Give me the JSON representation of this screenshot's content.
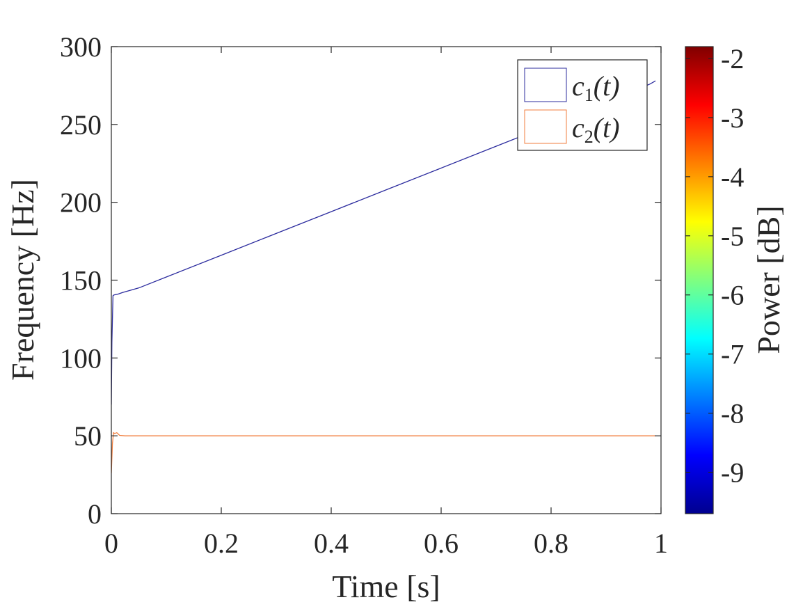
{
  "chart_data": {
    "type": "line",
    "xlabel": "Time [s]",
    "ylabel": "Frequency [Hz]",
    "xlim": [
      0,
      1
    ],
    "ylim": [
      0,
      300
    ],
    "xticks": [
      "0",
      "0.2",
      "0.4",
      "0.6",
      "0.8",
      "1"
    ],
    "xtick_values": [
      0,
      0.2,
      0.4,
      0.6,
      0.8,
      1
    ],
    "yticks": [
      "0",
      "50",
      "100",
      "150",
      "200",
      "250",
      "300"
    ],
    "ytick_values": [
      0,
      50,
      100,
      150,
      200,
      250,
      300
    ],
    "grid": false,
    "legend_position": "top-right",
    "series": [
      {
        "name": "c1(t)",
        "color": "#2b2b9e",
        "x": [
          0,
          0.001,
          0.003,
          0.005,
          0.012,
          0.02,
          0.05,
          0.1,
          0.2,
          0.3,
          0.4,
          0.5,
          0.6,
          0.7,
          0.8,
          0.9,
          0.98,
          0.99
        ],
        "y": [
          70,
          110,
          140,
          140.5,
          141,
          142,
          145,
          152,
          166,
          180,
          194,
          208,
          222,
          236,
          250,
          264,
          276,
          278
        ]
      },
      {
        "name": "c2(t)",
        "color": "#f07d3c",
        "x": [
          0,
          0.002,
          0.004,
          0.006,
          0.01,
          0.015,
          0.025,
          0.1,
          0.3,
          0.5,
          0.7,
          0.9,
          0.99
        ],
        "y": [
          26,
          45,
          52,
          51.5,
          52,
          50.3,
          50,
          50,
          50,
          50,
          50,
          50,
          50
        ]
      }
    ],
    "colorbar": {
      "label": "Power [dB]",
      "colormap": "jet",
      "range": [
        -9.7,
        -1.8
      ],
      "ticks": [
        "-9",
        "-8",
        "-7",
        "-6",
        "-5",
        "-4",
        "-3",
        "-2"
      ],
      "tick_values": [
        -9,
        -8,
        -7,
        -6,
        -5,
        -4,
        -3,
        -2
      ]
    }
  }
}
